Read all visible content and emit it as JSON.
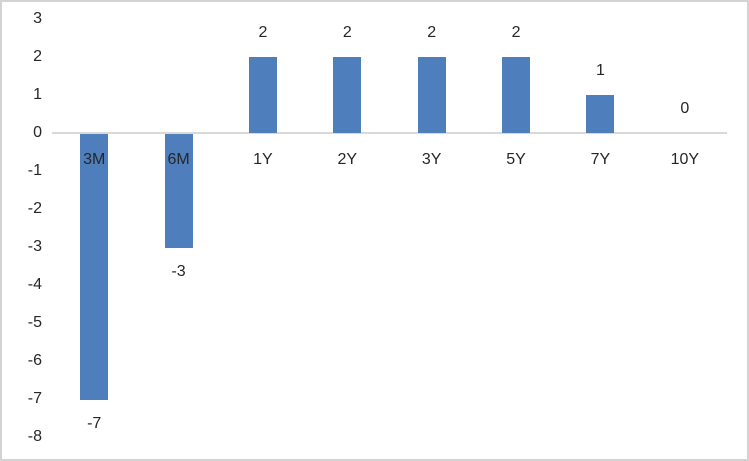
{
  "chart_data": {
    "type": "bar",
    "title": "",
    "xlabel": "",
    "ylabel": "",
    "categories": [
      "3M",
      "6M",
      "1Y",
      "2Y",
      "3Y",
      "5Y",
      "7Y",
      "10Y"
    ],
    "values": [
      -7,
      -3,
      2,
      2,
      2,
      2,
      1,
      0
    ],
    "data_labels": [
      "-7",
      "-3",
      "2",
      "2",
      "2",
      "2",
      "1",
      "0"
    ],
    "yticks": [
      3,
      2,
      1,
      0,
      -1,
      -2,
      -3,
      -4,
      -5,
      -6,
      -7,
      -8
    ],
    "ylim": [
      -8,
      3
    ],
    "grid": false,
    "legend_position": "none",
    "bar_color": "#4e7ebc",
    "axis_line_color": "#d9d9d9",
    "text_color": "#262626",
    "frame_border_color": "#d3d3d3",
    "background_color": "#ffffff"
  }
}
